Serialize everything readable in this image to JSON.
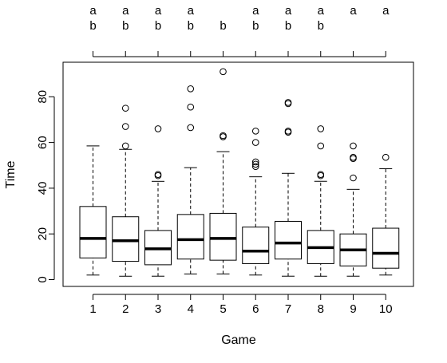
{
  "chart_data": {
    "type": "boxplot",
    "title": "",
    "xlabel": "Game",
    "ylabel": "Time",
    "ylim": [
      -2,
      97
    ],
    "y_ticks": [
      0,
      20,
      40,
      60,
      80
    ],
    "grid": false,
    "legend": "none",
    "categories": [
      "1",
      "2",
      "3",
      "4",
      "5",
      "6",
      "7",
      "8",
      "9",
      "10"
    ],
    "boxes": [
      {
        "category": "1",
        "whisker_low": 2,
        "q1": 9.5,
        "median": 18,
        "q3": 32,
        "whisker_high": 58.5,
        "outliers": []
      },
      {
        "category": "2",
        "whisker_low": 1.5,
        "q1": 8,
        "median": 17,
        "q3": 27.5,
        "whisker_high": 57,
        "outliers": [
          58.5,
          67,
          75
        ]
      },
      {
        "category": "3",
        "whisker_low": 1.5,
        "q1": 6.5,
        "median": 13.5,
        "q3": 21.5,
        "whisker_high": 43,
        "outliers": [
          45.5,
          46,
          66
        ]
      },
      {
        "category": "4",
        "whisker_low": 2.5,
        "q1": 9,
        "median": 17.5,
        "q3": 28.5,
        "whisker_high": 49,
        "outliers": [
          66.5,
          75.5,
          83.5
        ]
      },
      {
        "category": "5",
        "whisker_low": 2.5,
        "q1": 8.5,
        "median": 18,
        "q3": 29,
        "whisker_high": 56,
        "outliers": [
          62.5,
          63,
          91
        ]
      },
      {
        "category": "6",
        "whisker_low": 2,
        "q1": 7,
        "median": 12.5,
        "q3": 23,
        "whisker_high": 45,
        "outliers": [
          49.5,
          50.5,
          51.5,
          60,
          65
        ]
      },
      {
        "category": "7",
        "whisker_low": 1.5,
        "q1": 9,
        "median": 16,
        "q3": 25.5,
        "whisker_high": 46.5,
        "outliers": [
          64.5,
          65,
          77,
          77.5
        ]
      },
      {
        "category": "8",
        "whisker_low": 1.5,
        "q1": 7,
        "median": 14,
        "q3": 21.5,
        "whisker_high": 43,
        "outliers": [
          45.5,
          46,
          58.5,
          66
        ]
      },
      {
        "category": "9",
        "whisker_low": 1.5,
        "q1": 6,
        "median": 13,
        "q3": 20,
        "whisker_high": 39.5,
        "outliers": [
          44.5,
          53,
          53.5,
          58.5
        ]
      },
      {
        "category": "10",
        "whisker_low": 2,
        "q1": 5,
        "median": 11.5,
        "q3": 22.5,
        "whisker_high": 48.5,
        "outliers": [
          53.5
        ]
      }
    ],
    "group_letters": [
      [
        "a",
        "b"
      ],
      [
        "a",
        "b"
      ],
      [
        "a",
        "b"
      ],
      [
        "a",
        "b"
      ],
      [
        "",
        "b"
      ],
      [
        "a",
        "b"
      ],
      [
        "a",
        "b"
      ],
      [
        "a",
        "b"
      ],
      [
        "a",
        ""
      ],
      [
        "a",
        ""
      ]
    ]
  }
}
